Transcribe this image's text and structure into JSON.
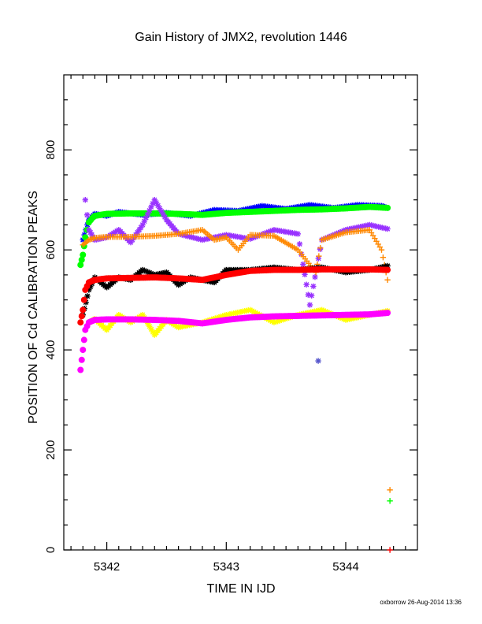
{
  "chart_data": {
    "type": "scatter",
    "title": "Gain History of JMX2, revolution 1446",
    "xlabel": "TIME IN IJD",
    "ylabel": "POSITION OF Cd CALIBRATION PEAKS",
    "xlim": [
      5341.64,
      5344.6
    ],
    "ylim": [
      0,
      950
    ],
    "xticks": [
      5342,
      5343,
      5344
    ],
    "yticks": [
      0,
      200,
      400,
      600,
      800
    ],
    "grid": false,
    "legend": "none",
    "footer": "oxborrow 26-Aug-2014 13:36",
    "series": [
      {
        "color": "#0000ff",
        "marker": "star",
        "x": [
          5341.8,
          5341.85,
          5341.9,
          5342.0,
          5342.1,
          5342.3,
          5342.5,
          5342.7,
          5342.9,
          5343.1,
          5343.3,
          5343.5,
          5343.7,
          5343.9,
          5344.1,
          5344.3,
          5344.35
        ],
        "y": [
          620,
          660,
          672,
          668,
          676,
          670,
          674,
          668,
          680,
          678,
          688,
          682,
          690,
          684,
          690,
          688,
          684
        ]
      },
      {
        "color": "#00ff00",
        "marker": "circle",
        "x": [
          5341.78,
          5341.8,
          5341.82,
          5341.85,
          5341.88,
          5341.9,
          5342.0,
          5342.2,
          5342.4,
          5342.6,
          5342.8,
          5343.0,
          5343.2,
          5343.4,
          5343.6,
          5343.8,
          5344.0,
          5344.2,
          5344.35
        ],
        "y": [
          570,
          590,
          625,
          655,
          664,
          668,
          672,
          673,
          673,
          672,
          670,
          674,
          676,
          678,
          680,
          681,
          683,
          686,
          684
        ]
      },
      {
        "color": "#00ff00",
        "marker": "plus",
        "x": [
          5344.37
        ],
        "y": [
          98
        ]
      },
      {
        "color": "#9933ff",
        "marker": "star",
        "x": [
          5341.82,
          5341.85,
          5341.9,
          5342.0,
          5342.1,
          5342.2,
          5342.3,
          5342.4,
          5342.5,
          5342.6,
          5342.8,
          5343.0,
          5343.2,
          5343.4,
          5343.6,
          5343.7,
          5343.8,
          5344.0,
          5344.2,
          5344.35
        ],
        "y": [
          700,
          640,
          620,
          625,
          640,
          615,
          650,
          700,
          660,
          632,
          620,
          630,
          622,
          640,
          632,
          490,
          620,
          640,
          650,
          642
        ]
      },
      {
        "color": "#ff8800",
        "marker": "plus",
        "x": [
          5341.8,
          5341.85,
          5341.9,
          5342.0,
          5342.2,
          5342.4,
          5342.6,
          5342.8,
          5342.9,
          5343.0,
          5343.1,
          5343.2,
          5343.4,
          5343.6,
          5343.75,
          5343.8,
          5344.0,
          5344.2,
          5344.3,
          5344.35
        ],
        "y": [
          610,
          620,
          624,
          626,
          626,
          628,
          632,
          640,
          620,
          625,
          600,
          630,
          628,
          600,
          555,
          620,
          635,
          640,
          600,
          540
        ]
      },
      {
        "color": "#ff8800",
        "marker": "plus",
        "x": [
          5344.37
        ],
        "y": [
          120
        ]
      },
      {
        "color": "#000000",
        "marker": "star",
        "x": [
          5341.8,
          5341.85,
          5341.9,
          5342.0,
          5342.1,
          5342.2,
          5342.3,
          5342.4,
          5342.5,
          5342.6,
          5342.7,
          5342.8,
          5342.9,
          5343.0,
          5343.2,
          5343.4,
          5343.6,
          5343.8,
          5344.0,
          5344.2,
          5344.35
        ],
        "y": [
          470,
          520,
          545,
          525,
          545,
          540,
          560,
          550,
          555,
          530,
          545,
          540,
          535,
          560,
          560,
          565,
          560,
          565,
          555,
          560,
          568
        ]
      },
      {
        "color": "#ff0000",
        "marker": "circle",
        "x": [
          5341.78,
          5341.8,
          5341.82,
          5341.85,
          5341.9,
          5342.0,
          5342.2,
          5342.4,
          5342.6,
          5342.8,
          5343.0,
          5343.2,
          5343.4,
          5343.6,
          5343.8,
          5344.0,
          5344.2,
          5344.35
        ],
        "y": [
          455,
          480,
          520,
          535,
          540,
          543,
          544,
          545,
          543,
          540,
          550,
          558,
          560,
          560,
          561,
          561,
          561,
          560
        ]
      },
      {
        "color": "#ffff00",
        "marker": "star",
        "x": [
          5341.85,
          5341.9,
          5342.0,
          5342.1,
          5342.2,
          5342.3,
          5342.4,
          5342.5,
          5342.6,
          5342.8,
          5343.0,
          5343.2,
          5343.4,
          5343.6,
          5343.8,
          5344.0,
          5344.2,
          5344.35
        ],
        "y": [
          455,
          462,
          440,
          470,
          455,
          470,
          430,
          460,
          445,
          455,
          470,
          480,
          455,
          470,
          480,
          460,
          470,
          478
        ]
      },
      {
        "color": "#ff00ff",
        "marker": "circle",
        "x": [
          5341.78,
          5341.8,
          5341.82,
          5341.85,
          5341.9,
          5342.0,
          5342.2,
          5342.4,
          5342.6,
          5342.8,
          5343.0,
          5343.2,
          5343.4,
          5343.6,
          5343.8,
          5344.0,
          5344.2,
          5344.35
        ],
        "y": [
          360,
          400,
          440,
          455,
          460,
          461,
          461,
          460,
          458,
          453,
          460,
          465,
          467,
          468,
          469,
          470,
          471,
          474
        ]
      },
      {
        "color": "#5555cc",
        "marker": "star",
        "x": [
          5343.77
        ],
        "y": [
          378
        ]
      },
      {
        "color": "#ff0000",
        "marker": "plus",
        "x": [
          5344.37
        ],
        "y": [
          0
        ]
      }
    ]
  }
}
